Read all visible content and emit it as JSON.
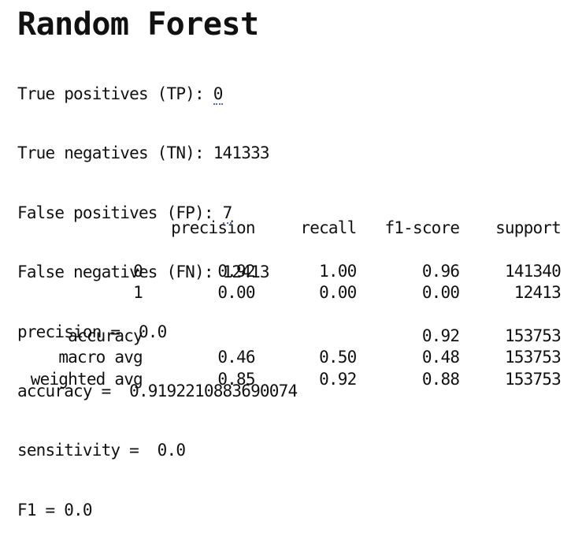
{
  "title": "Random Forest",
  "metrics": {
    "tp_label": "True positives (TP): ",
    "tp_value": "0",
    "tn_label": "True negatives (TN): ",
    "tn_value": "141333",
    "fp_label": "False positives (FP): ",
    "fp_value": "7",
    "fn_label": "False negatives (FN): ",
    "fn_value": "12413",
    "precision_line": "precision =  0.0",
    "accuracy_line": "accuracy =  0.9192210883690074",
    "sensitivity_line": "sensitivity =  0.0",
    "f1_line": "F1 = 0.0"
  },
  "report": {
    "headers": [
      "",
      "precision",
      "recall",
      "f1-score",
      "support"
    ],
    "rows": [
      [
        "0",
        "0.92",
        "1.00",
        "0.96",
        "141340"
      ],
      [
        "1",
        "0.00",
        "0.00",
        "0.00",
        "12413"
      ]
    ],
    "summary": [
      [
        "accuracy",
        "",
        "",
        "0.92",
        "153753"
      ],
      [
        "macro avg",
        "0.46",
        "0.50",
        "0.48",
        "153753"
      ],
      [
        "weighted avg",
        "0.85",
        "0.92",
        "0.88",
        "153753"
      ]
    ]
  }
}
